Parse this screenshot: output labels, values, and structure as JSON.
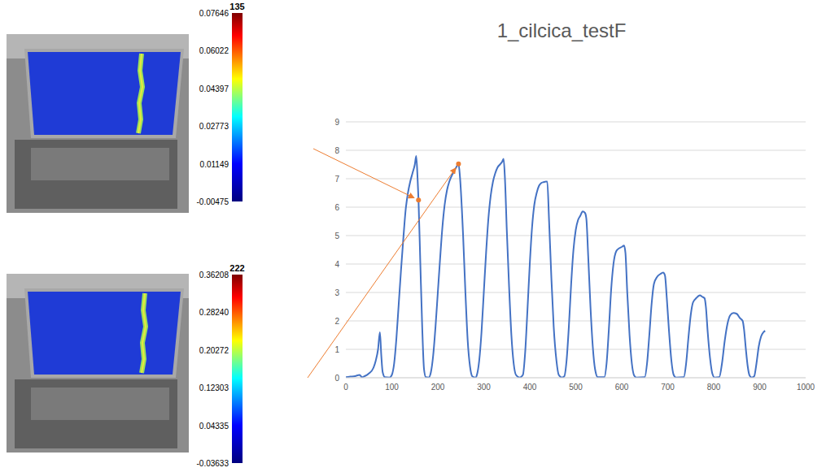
{
  "chart_data": {
    "type": "line",
    "title": "1_cilcica_testF",
    "color": "#4472c4",
    "grid": true,
    "x": [
      0,
      10,
      20,
      30,
      35,
      40,
      50,
      60,
      65,
      70,
      74,
      77,
      80,
      85,
      95,
      100,
      105,
      110,
      115,
      120,
      125,
      130,
      135,
      140,
      145,
      150,
      153,
      156,
      158,
      162,
      166,
      170,
      174,
      180,
      185,
      190,
      195,
      200,
      205,
      210,
      215,
      220,
      225,
      230,
      235,
      240,
      245,
      248,
      255,
      260,
      265,
      270,
      275,
      282,
      285,
      290,
      295,
      300,
      305,
      310,
      315,
      320,
      325,
      330,
      335,
      340,
      343,
      346,
      350,
      355,
      360,
      365,
      370,
      378,
      385,
      390,
      395,
      400,
      405,
      410,
      415,
      420,
      425,
      430,
      435,
      438,
      442,
      447,
      452,
      458,
      463,
      470,
      475,
      480,
      485,
      490,
      495,
      500,
      505,
      510,
      515,
      520,
      523,
      527,
      532,
      537,
      542,
      548,
      562,
      567,
      572,
      577,
      582,
      588,
      594,
      600,
      605,
      608,
      612,
      617,
      622,
      627,
      632,
      650,
      655,
      660,
      665,
      670,
      677,
      684,
      690,
      694,
      698,
      703,
      708,
      713,
      718,
      735,
      740,
      745,
      750,
      755,
      762,
      770,
      775,
      780,
      783,
      787,
      792,
      797,
      802,
      812,
      818,
      824,
      830,
      836,
      843,
      850,
      857,
      863,
      866,
      870,
      874,
      878,
      883,
      888,
      893,
      898,
      903,
      908,
      912
    ],
    "values": [
      0.02,
      0.04,
      0.06,
      0.1,
      0.02,
      0.05,
      0.15,
      0.35,
      0.6,
      1.0,
      1.6,
      0.8,
      0.2,
      0.02,
      0.01,
      0.1,
      0.5,
      1.4,
      2.6,
      3.8,
      4.9,
      5.9,
      6.5,
      6.9,
      7.2,
      7.5,
      7.8,
      7.0,
      6.25,
      4.0,
      1.8,
      0.3,
      0.02,
      0.01,
      0.2,
      0.8,
      1.8,
      3.0,
      4.2,
      5.3,
      6.1,
      6.6,
      6.9,
      7.1,
      7.25,
      7.4,
      7.52,
      7.1,
      5.0,
      3.0,
      1.3,
      0.4,
      0.05,
      0.01,
      0.1,
      0.6,
      1.6,
      3.0,
      4.4,
      5.6,
      6.4,
      6.9,
      7.2,
      7.4,
      7.5,
      7.6,
      7.7,
      7.0,
      5.2,
      3.2,
      1.5,
      0.5,
      0.1,
      0.01,
      0.1,
      0.9,
      2.4,
      4.0,
      5.3,
      6.1,
      6.5,
      6.75,
      6.85,
      6.88,
      6.9,
      6.9,
      5.5,
      3.5,
      1.8,
      0.6,
      0.1,
      0.01,
      0.05,
      0.6,
      1.8,
      3.3,
      4.5,
      5.2,
      5.55,
      5.7,
      5.85,
      5.8,
      5.6,
      4.3,
      2.5,
      1.1,
      0.3,
      0.02,
      0.02,
      0.5,
      1.7,
      3.1,
      4.0,
      4.45,
      4.55,
      4.6,
      4.65,
      4.4,
      3.0,
      1.5,
      0.5,
      0.08,
      0.01,
      0.02,
      0.5,
      1.5,
      2.6,
      3.3,
      3.55,
      3.65,
      3.7,
      3.6,
      2.8,
      1.6,
      0.6,
      0.1,
      0.01,
      0.02,
      0.5,
      1.4,
      2.2,
      2.65,
      2.8,
      2.9,
      2.85,
      2.8,
      2.5,
      1.6,
      0.7,
      0.15,
      0.01,
      0.02,
      0.5,
      1.3,
      1.9,
      2.2,
      2.28,
      2.25,
      2.1,
      2.0,
      1.7,
      1.0,
      0.4,
      0.08,
      0.01,
      0.05,
      0.5,
      1.1,
      1.45,
      1.6,
      1.65
    ],
    "xlim": [
      0,
      1000
    ],
    "xticks": [
      0,
      100,
      200,
      300,
      400,
      500,
      600,
      700,
      800,
      900,
      1000
    ],
    "ylim": [
      0,
      9
    ],
    "yticks": [
      0,
      1,
      2,
      3,
      4,
      5,
      6,
      7,
      8,
      9
    ],
    "highlight_points": {
      "x": [
        158,
        245
      ],
      "values": [
        6.25,
        7.52
      ],
      "color": "#ed7d31"
    }
  },
  "strain_maps": [
    {
      "frame": 135,
      "colorbar": {
        "range": [
          -0.00475,
          0.07646
        ],
        "ticks": [
          0.07646,
          0.06022,
          0.04397,
          0.02773,
          0.01149,
          -0.00475
        ]
      }
    },
    {
      "frame": 222,
      "colorbar": {
        "range": [
          -0.03633,
          0.36208
        ],
        "ticks": [
          0.36208,
          {
            "value": 0.2824,
            "label": "0.28240"
          },
          0.20272,
          0.12303,
          0.04335,
          -0.03633
        ]
      }
    }
  ]
}
